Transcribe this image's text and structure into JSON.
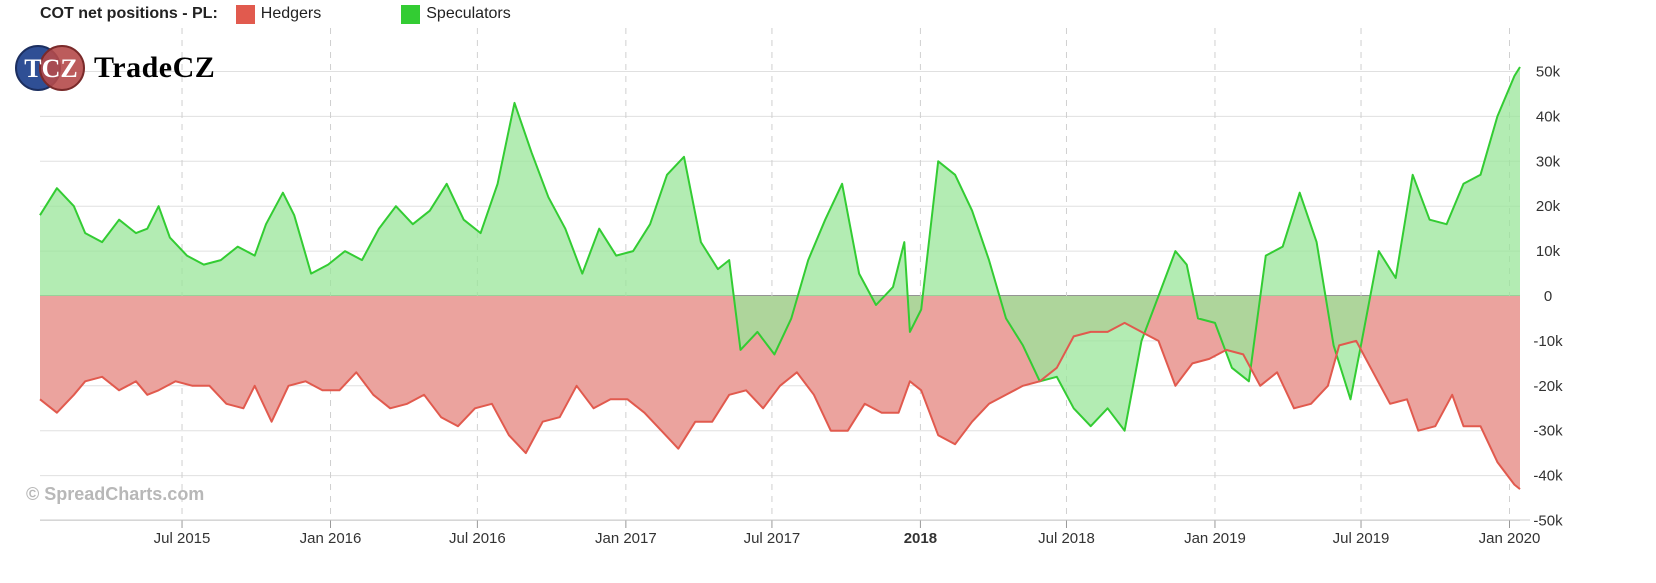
{
  "legend": {
    "title": "COT net positions - PL:",
    "items": [
      {
        "name": "Hedgers",
        "color": "#e15a4e"
      },
      {
        "name": "Speculators",
        "color": "#33cc33"
      }
    ]
  },
  "logo": {
    "monogram": "TCZ",
    "wordmark": "TradeCZ"
  },
  "watermark": "© SpreadCharts.com",
  "chart_data": {
    "type": "area",
    "y_ticks": [
      50000,
      40000,
      30000,
      20000,
      10000,
      0,
      -10000,
      -20000,
      -30000,
      -40000,
      -50000
    ],
    "y_tick_labels": [
      "50k",
      "40k",
      "30k",
      "20k",
      "10k",
      "0",
      "-10k",
      "-20k",
      "-30k",
      "-40k",
      "-50k"
    ],
    "ylim": [
      -50000,
      55000
    ],
    "xlim": [
      "2015-01-06",
      "2020-01-14"
    ],
    "x_ticks": [
      {
        "label": "Jul 2015",
        "date": "2015-07-01",
        "bold": false
      },
      {
        "label": "Jan 2016",
        "date": "2016-01-01",
        "bold": false
      },
      {
        "label": "Jul 2016",
        "date": "2016-07-01",
        "bold": false
      },
      {
        "label": "Jan 2017",
        "date": "2017-01-01",
        "bold": false
      },
      {
        "label": "Jul 2017",
        "date": "2017-07-01",
        "bold": false
      },
      {
        "label": "2018",
        "date": "2018-01-01",
        "bold": true
      },
      {
        "label": "Jul 2018",
        "date": "2018-07-01",
        "bold": false
      },
      {
        "label": "Jan 2019",
        "date": "2019-01-01",
        "bold": false
      },
      {
        "label": "Jul 2019",
        "date": "2019-07-01",
        "bold": false
      },
      {
        "label": "Jan 2020",
        "date": "2020-01-01",
        "bold": false
      }
    ],
    "grid": true,
    "series": [
      {
        "name": "Speculators",
        "color": "#33cc33",
        "fill": "#99e699",
        "points": [
          [
            "2015-01-06",
            18000
          ],
          [
            "2015-01-27",
            24000
          ],
          [
            "2015-02-17",
            20000
          ],
          [
            "2015-03-03",
            14000
          ],
          [
            "2015-03-24",
            12000
          ],
          [
            "2015-04-14",
            17000
          ],
          [
            "2015-05-05",
            14000
          ],
          [
            "2015-05-19",
            15000
          ],
          [
            "2015-06-02",
            20000
          ],
          [
            "2015-06-16",
            13000
          ],
          [
            "2015-07-07",
            9000
          ],
          [
            "2015-07-28",
            7000
          ],
          [
            "2015-08-18",
            8000
          ],
          [
            "2015-09-08",
            11000
          ],
          [
            "2015-09-29",
            9000
          ],
          [
            "2015-10-13",
            16000
          ],
          [
            "2015-11-03",
            23000
          ],
          [
            "2015-11-17",
            18000
          ],
          [
            "2015-12-08",
            5000
          ],
          [
            "2015-12-29",
            7000
          ],
          [
            "2016-01-19",
            10000
          ],
          [
            "2016-02-09",
            8000
          ],
          [
            "2016-03-01",
            15000
          ],
          [
            "2016-03-22",
            20000
          ],
          [
            "2016-04-12",
            16000
          ],
          [
            "2016-05-03",
            19000
          ],
          [
            "2016-05-24",
            25000
          ],
          [
            "2016-06-14",
            17000
          ],
          [
            "2016-07-05",
            14000
          ],
          [
            "2016-07-26",
            25000
          ],
          [
            "2016-08-16",
            43000
          ],
          [
            "2016-09-06",
            32000
          ],
          [
            "2016-09-27",
            22000
          ],
          [
            "2016-10-18",
            15000
          ],
          [
            "2016-11-08",
            5000
          ],
          [
            "2016-11-29",
            15000
          ],
          [
            "2016-12-20",
            9000
          ],
          [
            "2017-01-10",
            10000
          ],
          [
            "2017-01-31",
            16000
          ],
          [
            "2017-02-21",
            27000
          ],
          [
            "2017-03-14",
            31000
          ],
          [
            "2017-04-04",
            12000
          ],
          [
            "2017-04-25",
            6000
          ],
          [
            "2017-05-09",
            8000
          ],
          [
            "2017-05-23",
            -12000
          ],
          [
            "2017-06-13",
            -8000
          ],
          [
            "2017-07-04",
            -13000
          ],
          [
            "2017-07-25",
            -5000
          ],
          [
            "2017-08-15",
            8000
          ],
          [
            "2017-09-05",
            17000
          ],
          [
            "2017-09-26",
            25000
          ],
          [
            "2017-10-17",
            5000
          ],
          [
            "2017-11-07",
            -2000
          ],
          [
            "2017-11-28",
            2000
          ],
          [
            "2017-12-12",
            12000
          ],
          [
            "2017-12-19",
            -8000
          ],
          [
            "2018-01-02",
            -3000
          ],
          [
            "2018-01-23",
            30000
          ],
          [
            "2018-02-13",
            27000
          ],
          [
            "2018-03-06",
            19000
          ],
          [
            "2018-03-27",
            8000
          ],
          [
            "2018-04-17",
            -5000
          ],
          [
            "2018-05-08",
            -11000
          ],
          [
            "2018-05-29",
            -19000
          ],
          [
            "2018-06-19",
            -18000
          ],
          [
            "2018-07-10",
            -25000
          ],
          [
            "2018-07-31",
            -29000
          ],
          [
            "2018-08-21",
            -25000
          ],
          [
            "2018-09-11",
            -30000
          ],
          [
            "2018-10-02",
            -10000
          ],
          [
            "2018-10-23",
            0
          ],
          [
            "2018-11-13",
            10000
          ],
          [
            "2018-11-27",
            7000
          ],
          [
            "2018-12-11",
            -5000
          ],
          [
            "2019-01-01",
            -6000
          ],
          [
            "2019-01-22",
            -16000
          ],
          [
            "2019-02-12",
            -19000
          ],
          [
            "2019-03-05",
            9000
          ],
          [
            "2019-03-26",
            11000
          ],
          [
            "2019-04-16",
            23000
          ],
          [
            "2019-05-07",
            12000
          ],
          [
            "2019-05-28",
            -11000
          ],
          [
            "2019-06-18",
            -23000
          ],
          [
            "2019-07-02",
            -10000
          ],
          [
            "2019-07-23",
            10000
          ],
          [
            "2019-08-13",
            4000
          ],
          [
            "2019-09-03",
            27000
          ],
          [
            "2019-09-24",
            17000
          ],
          [
            "2019-10-15",
            16000
          ],
          [
            "2019-11-05",
            25000
          ],
          [
            "2019-11-26",
            27000
          ],
          [
            "2019-12-17",
            40000
          ],
          [
            "2020-01-07",
            49000
          ],
          [
            "2020-01-14",
            51000
          ]
        ]
      },
      {
        "name": "Hedgers",
        "color": "#e15a4e",
        "fill": "#eba39e",
        "points": [
          [
            "2015-01-06",
            -23000
          ],
          [
            "2015-01-27",
            -26000
          ],
          [
            "2015-02-17",
            -22000
          ],
          [
            "2015-03-03",
            -19000
          ],
          [
            "2015-03-24",
            -18000
          ],
          [
            "2015-04-14",
            -21000
          ],
          [
            "2015-05-05",
            -19000
          ],
          [
            "2015-05-19",
            -22000
          ],
          [
            "2015-06-02",
            -21000
          ],
          [
            "2015-06-23",
            -19000
          ],
          [
            "2015-07-14",
            -20000
          ],
          [
            "2015-08-04",
            -20000
          ],
          [
            "2015-08-25",
            -24000
          ],
          [
            "2015-09-15",
            -25000
          ],
          [
            "2015-09-29",
            -20000
          ],
          [
            "2015-10-20",
            -28000
          ],
          [
            "2015-11-10",
            -20000
          ],
          [
            "2015-12-01",
            -19000
          ],
          [
            "2015-12-22",
            -21000
          ],
          [
            "2016-01-12",
            -21000
          ],
          [
            "2016-02-02",
            -17000
          ],
          [
            "2016-02-23",
            -22000
          ],
          [
            "2016-03-15",
            -25000
          ],
          [
            "2016-04-05",
            -24000
          ],
          [
            "2016-04-26",
            -22000
          ],
          [
            "2016-05-17",
            -27000
          ],
          [
            "2016-06-07",
            -29000
          ],
          [
            "2016-06-28",
            -25000
          ],
          [
            "2016-07-19",
            -24000
          ],
          [
            "2016-08-09",
            -31000
          ],
          [
            "2016-08-30",
            -35000
          ],
          [
            "2016-09-20",
            -28000
          ],
          [
            "2016-10-11",
            -27000
          ],
          [
            "2016-11-01",
            -20000
          ],
          [
            "2016-11-22",
            -25000
          ],
          [
            "2016-12-13",
            -23000
          ],
          [
            "2017-01-03",
            -23000
          ],
          [
            "2017-01-24",
            -26000
          ],
          [
            "2017-02-14",
            -30000
          ],
          [
            "2017-03-07",
            -34000
          ],
          [
            "2017-03-28",
            -28000
          ],
          [
            "2017-04-18",
            -28000
          ],
          [
            "2017-05-09",
            -22000
          ],
          [
            "2017-05-30",
            -21000
          ],
          [
            "2017-06-20",
            -25000
          ],
          [
            "2017-07-11",
            -20000
          ],
          [
            "2017-08-01",
            -17000
          ],
          [
            "2017-08-22",
            -22000
          ],
          [
            "2017-09-12",
            -30000
          ],
          [
            "2017-10-03",
            -30000
          ],
          [
            "2017-10-24",
            -24000
          ],
          [
            "2017-11-14",
            -26000
          ],
          [
            "2017-12-05",
            -26000
          ],
          [
            "2017-12-19",
            -19000
          ],
          [
            "2018-01-02",
            -21000
          ],
          [
            "2018-01-23",
            -31000
          ],
          [
            "2018-02-13",
            -33000
          ],
          [
            "2018-03-06",
            -28000
          ],
          [
            "2018-03-27",
            -24000
          ],
          [
            "2018-04-17",
            -22000
          ],
          [
            "2018-05-08",
            -20000
          ],
          [
            "2018-05-29",
            -19000
          ],
          [
            "2018-06-19",
            -16000
          ],
          [
            "2018-07-10",
            -9000
          ],
          [
            "2018-07-31",
            -8000
          ],
          [
            "2018-08-21",
            -8000
          ],
          [
            "2018-09-11",
            -6000
          ],
          [
            "2018-10-02",
            -8000
          ],
          [
            "2018-10-23",
            -10000
          ],
          [
            "2018-11-13",
            -20000
          ],
          [
            "2018-12-04",
            -15000
          ],
          [
            "2018-12-25",
            -14000
          ],
          [
            "2019-01-15",
            -12000
          ],
          [
            "2019-02-05",
            -13000
          ],
          [
            "2019-02-26",
            -20000
          ],
          [
            "2019-03-19",
            -17000
          ],
          [
            "2019-04-09",
            -25000
          ],
          [
            "2019-04-30",
            -24000
          ],
          [
            "2019-05-21",
            -20000
          ],
          [
            "2019-06-04",
            -11000
          ],
          [
            "2019-06-25",
            -10000
          ],
          [
            "2019-07-16",
            -17000
          ],
          [
            "2019-08-06",
            -24000
          ],
          [
            "2019-08-27",
            -23000
          ],
          [
            "2019-09-10",
            -30000
          ],
          [
            "2019-10-01",
            -29000
          ],
          [
            "2019-10-22",
            -22000
          ],
          [
            "2019-11-05",
            -29000
          ],
          [
            "2019-11-26",
            -29000
          ],
          [
            "2019-12-17",
            -37000
          ],
          [
            "2020-01-07",
            -42000
          ],
          [
            "2020-01-14",
            -43000
          ]
        ]
      }
    ]
  }
}
